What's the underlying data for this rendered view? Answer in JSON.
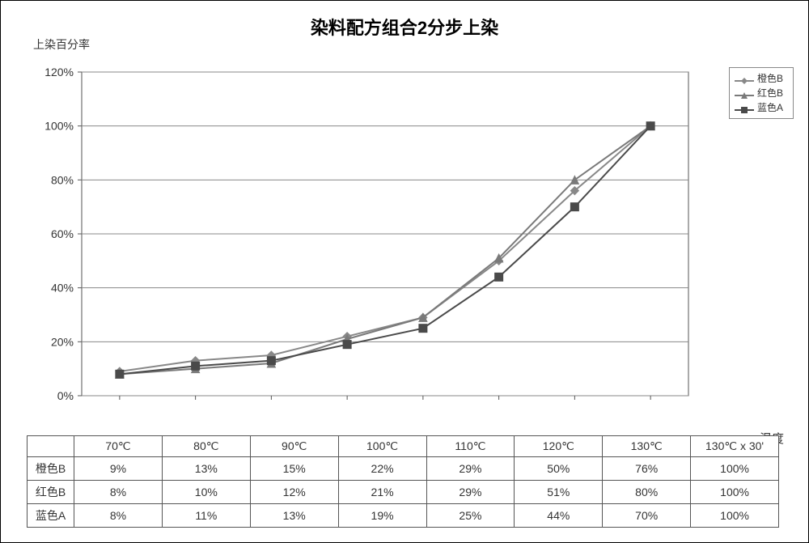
{
  "chart": {
    "type": "line",
    "title": "染料配方组合2分步上染",
    "ylabel": "上染百分率",
    "xlabel": "温度",
    "categories": [
      "70℃",
      "80℃",
      "90℃",
      "100℃",
      "110℃",
      "120℃",
      "130℃",
      "130℃ x 30'"
    ],
    "ylim": [
      0,
      120
    ],
    "ytick_step": 20,
    "yticks": [
      "0%",
      "20%",
      "40%",
      "60%",
      "80%",
      "100%",
      "120%"
    ],
    "grid_color": "#888888",
    "axis_color": "#555555",
    "background_color": "#ffffff",
    "series": [
      {
        "name": "橙色B",
        "marker": "diamond",
        "color": "#888888",
        "values": [
          9,
          13,
          15,
          22,
          29,
          50,
          76,
          100
        ]
      },
      {
        "name": "红色B",
        "marker": "triangle",
        "color": "#7a7a7a",
        "values": [
          8,
          10,
          12,
          21,
          29,
          51,
          80,
          100
        ]
      },
      {
        "name": "蓝色A",
        "marker": "square",
        "color": "#4a4a4a",
        "values": [
          8,
          11,
          13,
          19,
          25,
          44,
          70,
          100
        ]
      }
    ],
    "table_rows": [
      {
        "label": "橙色B",
        "cells": [
          "9%",
          "13%",
          "15%",
          "22%",
          "29%",
          "50%",
          "76%",
          "100%"
        ]
      },
      {
        "label": "红色B",
        "cells": [
          "8%",
          "10%",
          "12%",
          "21%",
          "29%",
          "51%",
          "80%",
          "100%"
        ]
      },
      {
        "label": "蓝色A",
        "cells": [
          "8%",
          "11%",
          "13%",
          "19%",
          "25%",
          "44%",
          "70%",
          "100%"
        ]
      }
    ],
    "title_fontsize": 22,
    "label_fontsize": 14,
    "tick_fontsize": 14,
    "line_width": 2,
    "marker_size": 5
  }
}
